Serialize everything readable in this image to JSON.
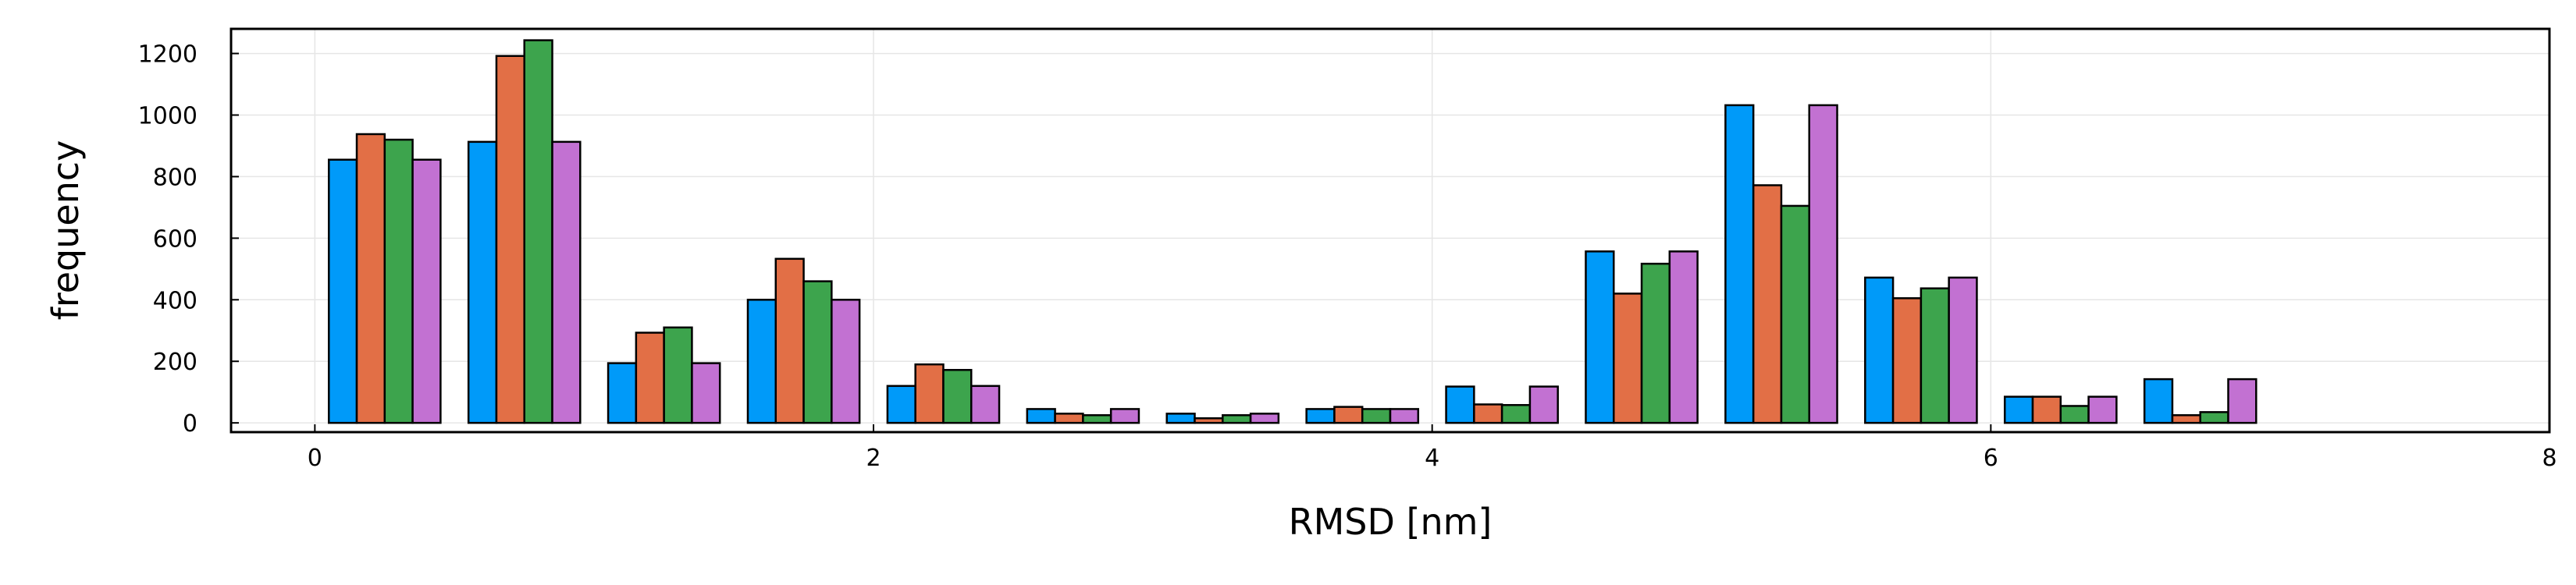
{
  "chart_data": {
    "type": "bar",
    "title": "",
    "xlabel": "RMSD [nm]",
    "ylabel": "frequency",
    "xlim": [
      -0.3,
      8
    ],
    "ylim": [
      -30,
      1280
    ],
    "xticks": [
      0,
      2,
      4,
      6,
      8
    ],
    "yticks": [
      0,
      200,
      400,
      600,
      800,
      1000,
      1200
    ],
    "grid": true,
    "legend": "none",
    "groups": [
      {
        "x_start": 0.05,
        "x_end": 0.45
      },
      {
        "x_start": 0.55,
        "x_end": 0.95
      },
      {
        "x_start": 1.05,
        "x_end": 1.45
      },
      {
        "x_start": 1.55,
        "x_end": 1.95
      },
      {
        "x_start": 2.05,
        "x_end": 2.45
      },
      {
        "x_start": 2.55,
        "x_end": 2.95
      },
      {
        "x_start": 3.05,
        "x_end": 3.45
      },
      {
        "x_start": 3.55,
        "x_end": 3.95
      },
      {
        "x_start": 4.05,
        "x_end": 4.45
      },
      {
        "x_start": 4.55,
        "x_end": 4.95
      },
      {
        "x_start": 5.05,
        "x_end": 5.45
      },
      {
        "x_start": 5.55,
        "x_end": 5.95
      },
      {
        "x_start": 6.05,
        "x_end": 6.45
      },
      {
        "x_start": 6.55,
        "x_end": 6.95
      }
    ],
    "series": [
      {
        "color": "#009af9",
        "values": [
          855,
          913,
          194,
          400,
          120,
          45,
          30,
          45,
          118,
          557,
          1032,
          472,
          85,
          142
        ]
      },
      {
        "color": "#e26f46",
        "values": [
          938,
          1192,
          293,
          533,
          190,
          30,
          15,
          52,
          60,
          420,
          772,
          405,
          85,
          25
        ]
      },
      {
        "color": "#3da44d",
        "values": [
          920,
          1243,
          310,
          460,
          172,
          25,
          25,
          45,
          58,
          517,
          705,
          437,
          55,
          35
        ]
      },
      {
        "color": "#c271d2",
        "values": [
          855,
          913,
          194,
          400,
          120,
          45,
          30,
          45,
          118,
          557,
          1032,
          472,
          85,
          142
        ]
      }
    ]
  }
}
